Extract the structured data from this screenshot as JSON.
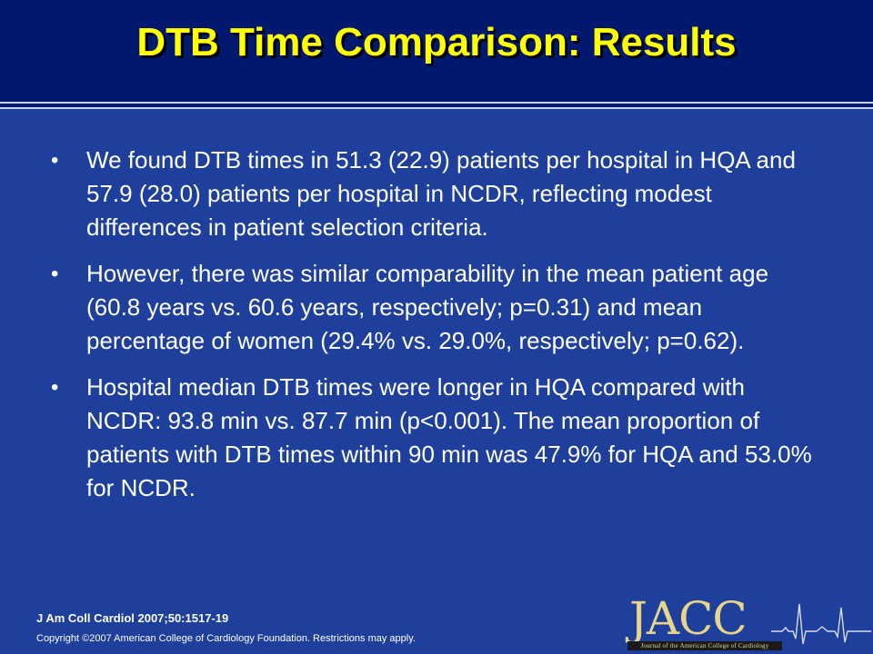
{
  "slide": {
    "title": "DTB Time Comparison: Results",
    "bullets": [
      "We found DTB times in 51.3 (22.9) patients per hospital in HQA and 57.9 (28.0) patients per hospital in NCDR, reflecting modest differences in patient selection criteria.",
      "However, there was similar comparability in the mean patient age (60.8 years vs. 60.6 years, respectively; p=0.31) and mean percentage of women (29.4% vs. 29.0%, respectively; p=0.62).",
      "Hospital median DTB times were longer in HQA compared with NCDR: 93.8 min vs. 87.7 min (p<0.001). The mean proportion of patients with DTB times within 90 min was 47.9% for HQA and 53.0% for NCDR."
    ],
    "bullet_char": "•"
  },
  "footer": {
    "citation": "J Am Coll Cardiol 2007;50:1517-19",
    "copyright": "Copyright ©2007 American College of Cardiology Foundation. Restrictions may apply."
  },
  "logo": {
    "name": "JACC",
    "subtitle": "Journal of the American College of Cardiology",
    "icon": "ecg-trace-icon"
  },
  "colors": {
    "background": "#1f3f9d",
    "header": "#00186e",
    "title": "#ffff00",
    "text": "#ffffff",
    "logo": "#e8d58a"
  }
}
